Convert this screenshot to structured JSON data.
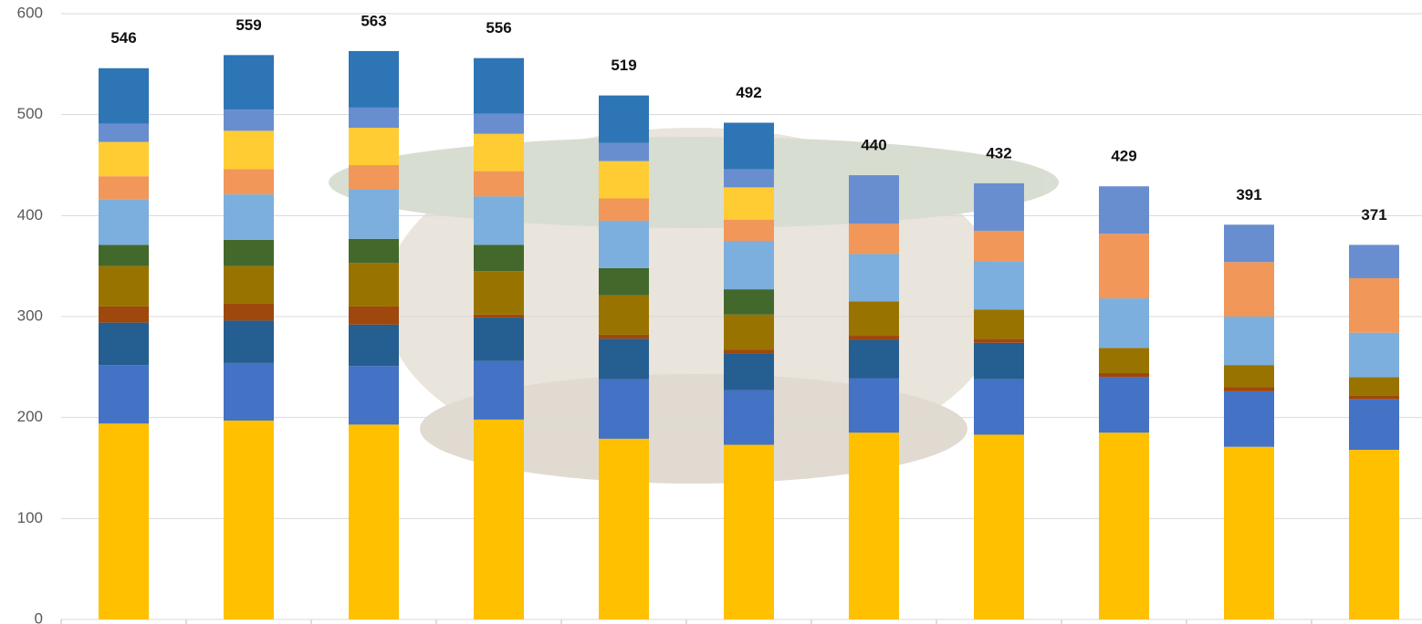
{
  "chart_data": {
    "type": "stacked-bar",
    "categories": [
      null,
      null,
      null,
      null,
      null,
      null,
      null,
      null,
      null,
      null,
      null
    ],
    "totals": [
      546,
      559,
      563,
      556,
      519,
      492,
      440,
      432,
      429,
      391,
      371
    ],
    "series": [
      {
        "color": "#ffc000",
        "values": [
          194,
          197,
          193,
          198,
          179,
          173,
          185,
          183,
          185,
          171,
          168
        ]
      },
      {
        "color": "#4472c4",
        "values": [
          58,
          57,
          58,
          58,
          59,
          54,
          54,
          55,
          55,
          55,
          50
        ]
      },
      {
        "color": "#255e91",
        "values": [
          42,
          42,
          41,
          43,
          40,
          36,
          38,
          36,
          0,
          0,
          0
        ]
      },
      {
        "color": "#9e480e",
        "values": [
          16,
          17,
          18,
          3,
          4,
          4,
          4,
          4,
          4,
          4,
          4
        ]
      },
      {
        "color": "#997300",
        "values": [
          40,
          37,
          43,
          43,
          39,
          35,
          34,
          29,
          25,
          22,
          18
        ]
      },
      {
        "color": "#43682b",
        "values": [
          21,
          26,
          24,
          26,
          27,
          25,
          0,
          0,
          0,
          0,
          0
        ]
      },
      {
        "color": "#7cafdd",
        "values": [
          45,
          45,
          49,
          48,
          47,
          48,
          47,
          48,
          49,
          48,
          44
        ]
      },
      {
        "color": "#f1975a",
        "values": [
          23,
          25,
          24,
          25,
          22,
          21,
          30,
          30,
          64,
          54,
          54
        ]
      },
      {
        "color": "#ffcd33",
        "values": [
          34,
          38,
          37,
          37,
          37,
          32,
          0,
          0,
          0,
          0,
          0
        ]
      },
      {
        "color": "#698ed0",
        "values": [
          18,
          21,
          20,
          20,
          18,
          18,
          48,
          47,
          47,
          37,
          33
        ]
      },
      {
        "color": "#2e75b6",
        "values": [
          55,
          54,
          56,
          55,
          47,
          46,
          0,
          0,
          0,
          0,
          0
        ]
      }
    ],
    "ylim": [
      0,
      600
    ],
    "yticks": [
      0,
      100,
      200,
      300,
      400,
      500,
      600
    ],
    "grid": true
  }
}
